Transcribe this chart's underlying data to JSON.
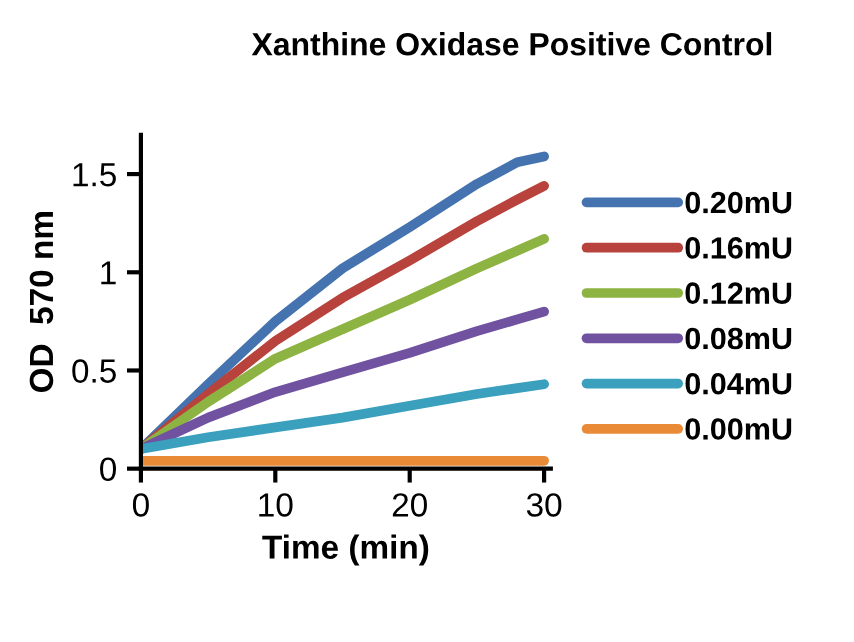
{
  "chart_data": {
    "type": "line",
    "title": "Xanthine Oxidase Positive Control",
    "xlabel": "Time (min)",
    "ylabel": "OD  570 nm",
    "x": [
      0,
      5,
      10,
      15,
      20,
      25,
      28,
      30
    ],
    "series": [
      {
        "name": "0.20mU",
        "color": "#4473b0",
        "values": [
          0.1,
          0.43,
          0.75,
          1.02,
          1.23,
          1.45,
          1.56,
          1.59
        ]
      },
      {
        "name": "0.16mU",
        "color": "#b8423c",
        "values": [
          0.1,
          0.38,
          0.65,
          0.87,
          1.06,
          1.26,
          1.37,
          1.44
        ]
      },
      {
        "name": "0.12mU",
        "color": "#8db342",
        "values": [
          0.1,
          0.34,
          0.56,
          0.71,
          0.86,
          1.02,
          1.11,
          1.17
        ]
      },
      {
        "name": "0.08mU",
        "color": "#7052a0",
        "values": [
          0.1,
          0.26,
          0.39,
          0.49,
          0.59,
          0.7,
          0.76,
          0.8
        ]
      },
      {
        "name": "0.04mU",
        "color": "#3aa0bd",
        "values": [
          0.1,
          0.16,
          0.21,
          0.26,
          0.32,
          0.38,
          0.41,
          0.43
        ]
      },
      {
        "name": "0.00mU",
        "color": "#e88a36",
        "values": [
          0.04,
          0.04,
          0.04,
          0.04,
          0.04,
          0.04,
          0.04,
          0.04
        ]
      }
    ],
    "xlim": [
      0,
      30.5
    ],
    "ylim": [
      0,
      1.7
    ],
    "xticks": [
      0,
      10,
      20,
      30
    ],
    "yticks": [
      0,
      0.5,
      1,
      1.5
    ],
    "grid": false,
    "legend": "right",
    "marker": "none",
    "line_style": "solid"
  }
}
